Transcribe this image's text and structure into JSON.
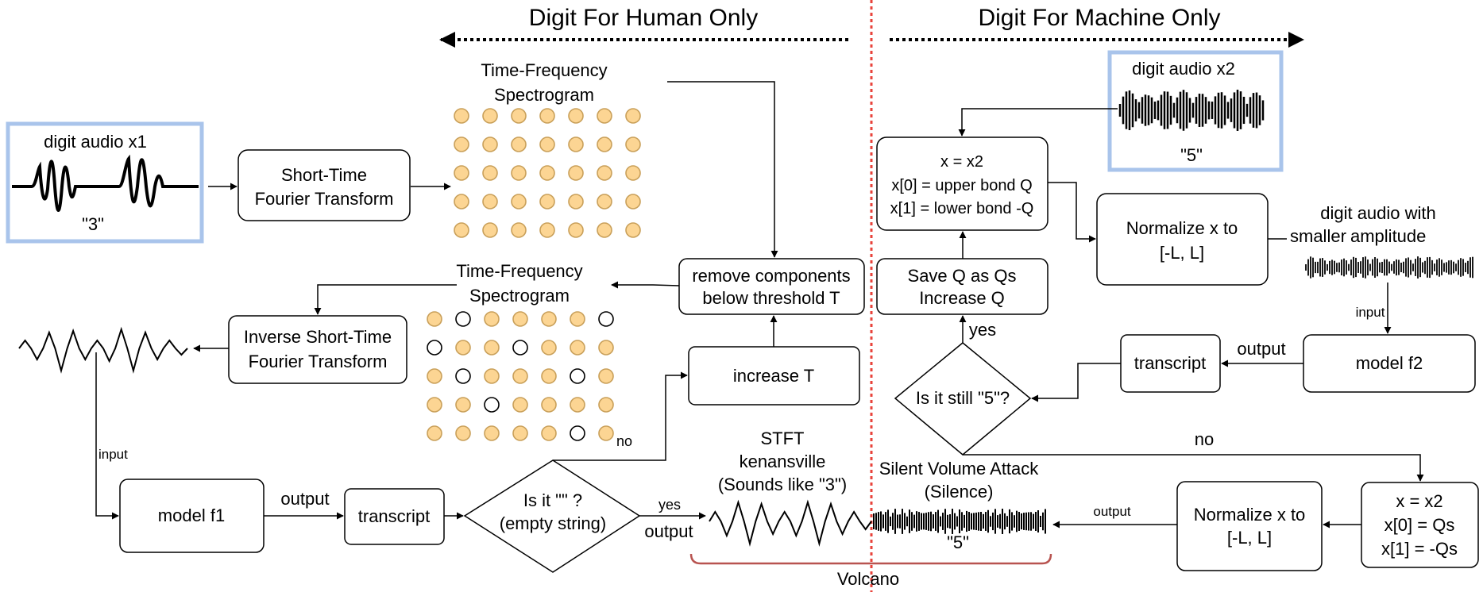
{
  "colors": {
    "divider": "#e8433b",
    "highlight_box": "#a9c4eb",
    "spectrogram_fill": "#fcd593",
    "spectrogram_stroke": "#c9a05a",
    "volcano_brace": "#b85450"
  },
  "header": {
    "human_only": "Digit For Human Only",
    "machine_only": "Digit For Machine Only"
  },
  "left": {
    "audio_x1_label": "digit audio x1",
    "audio_x1_digit": "\"3\"",
    "stft_line1": "Short-Time",
    "stft_line2": "Fourier Transform",
    "spec_top_line1": "Time-Frequency",
    "spec_top_line2": "Spectrogram",
    "spec_bottom_line1": "Time-Frequency",
    "spec_bottom_line2": "Spectrogram",
    "remove_line1": "remove components",
    "remove_line2": "below threshold T",
    "istft_line1": "Inverse Short-Time",
    "istft_line2": "Fourier Transform",
    "increase_t": "increase T",
    "input_label": "input",
    "model_f1": "model f1",
    "output_label_1": "output",
    "transcript_1": "transcript",
    "decision_line1": "Is it \"\" ?",
    "decision_line2": "(empty string)",
    "no_label": "no",
    "yes_label": "yes",
    "output_label_2": "output"
  },
  "bottom": {
    "stft_kenansville_line1": "STFT",
    "stft_kenansville_line2": "kenansville",
    "stft_kenansville_line3": "(Sounds like \"3\")",
    "silent_attack_line1": "Silent Volume Attack",
    "silent_attack_line2": "(Silence)",
    "combined_digit": "\"5\"",
    "volcano": "Volcano",
    "output_label": "output"
  },
  "right": {
    "audio_x2_label": "digit audio x2",
    "audio_x2_digit": "\"5\"",
    "init_line1": "x = x2",
    "init_line2": "x[0] = upper bond Q",
    "init_line3": "x[1] = lower bond -Q",
    "normalize_top_line1": "Normalize x to",
    "normalize_top_line2": "[-L, L]",
    "small_amp_line1": "digit audio with",
    "small_amp_line2a": "smaller",
    "small_amp_line2b": "amplitude",
    "input_label": "input",
    "model_f2": "model f2",
    "output_label": "output",
    "transcript_2": "transcript",
    "still5": "Is it still \"5\"?",
    "yes_label": "yes",
    "no_label": "no",
    "save_line1": "Save Q as Qs",
    "save_line2": "Increase Q",
    "final_line1": "x = x2",
    "final_line2": "x[0] = Qs",
    "final_line3": "x[1] = -Qs",
    "normalize_bottom_line1": "Normalize x to",
    "normalize_bottom_line2": "[-L, L]"
  }
}
